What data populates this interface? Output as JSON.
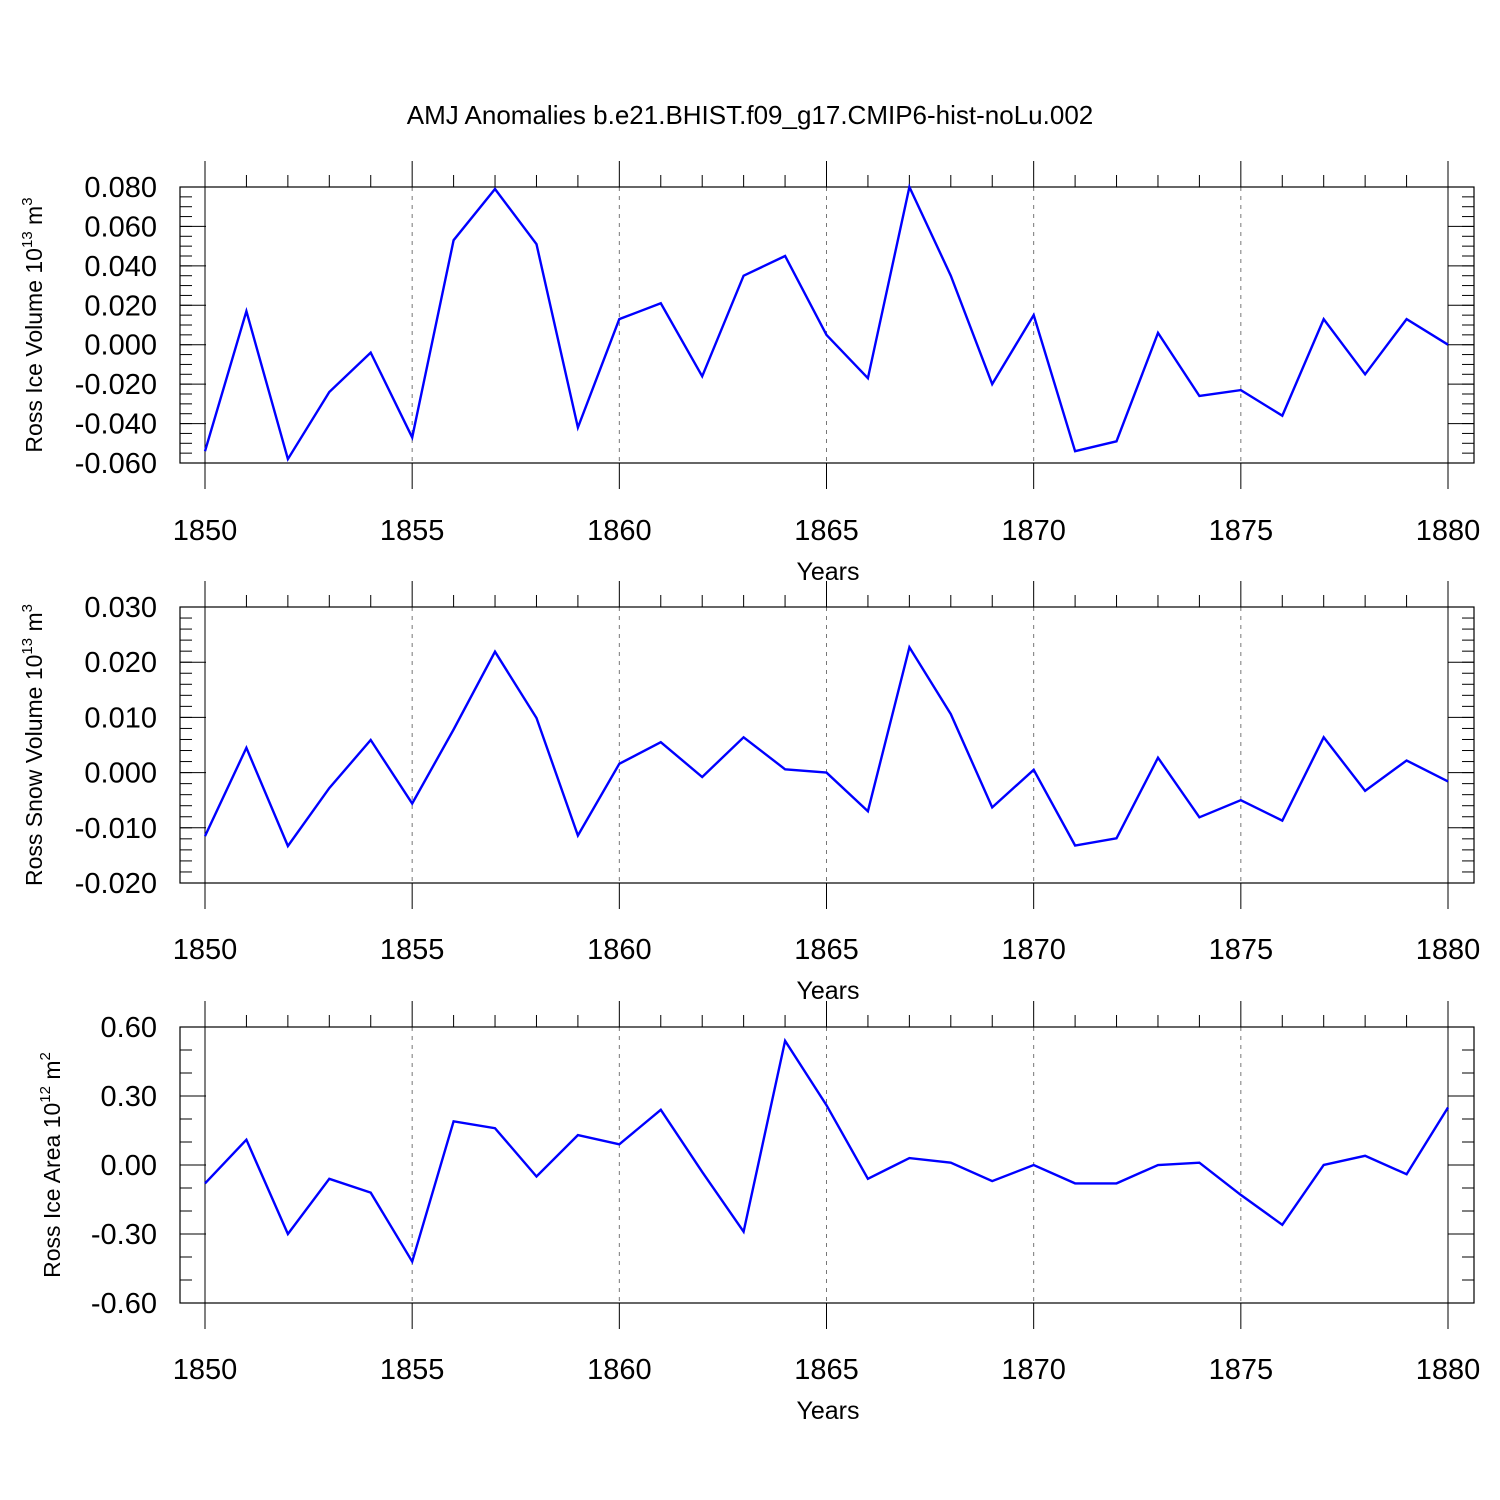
{
  "figure_title": "AMJ Anomalies b.e21.BHIST.f09_g17.CMIP6-hist-noLu.002",
  "colors": {
    "line": "#0000ff",
    "axes": "#000000",
    "grid": "#777777"
  },
  "chart_data": [
    {
      "type": "line",
      "title": "AMJ Anomalies b.e21.BHIST.f09_g17.CMIP6-hist-noLu.002",
      "ylabel": {
        "main": "Ross Ice Volume 10",
        "exp": "13",
        "unit": " m",
        "unit_exp": "3"
      },
      "xlabel": "Years",
      "xlim": [
        1850,
        1880
      ],
      "ylim": [
        -0.06,
        0.08
      ],
      "ytick_values": [
        -0.06,
        -0.04,
        -0.02,
        0.0,
        0.02,
        0.04,
        0.06,
        0.08
      ],
      "ytick_labels": [
        "-0.060",
        "-0.040",
        "-0.020",
        "0.000",
        "0.020",
        "0.040",
        "0.060",
        "0.080"
      ],
      "ytick_minor_step": 0.005,
      "xtick_values": [
        1850,
        1855,
        1860,
        1865,
        1870,
        1875,
        1880
      ],
      "xtick_labels": [
        "1850",
        "1855",
        "1860",
        "1865",
        "1870",
        "1875",
        "1880"
      ],
      "x": [
        1850,
        1851,
        1852,
        1853,
        1854,
        1855,
        1856,
        1857,
        1858,
        1859,
        1860,
        1861,
        1862,
        1863,
        1864,
        1865,
        1866,
        1867,
        1868,
        1869,
        1870,
        1871,
        1872,
        1873,
        1874,
        1875,
        1876,
        1877,
        1878,
        1879,
        1880
      ],
      "values": [
        -0.054,
        0.017,
        -0.058,
        -0.024,
        -0.004,
        -0.047,
        0.053,
        0.079,
        0.051,
        -0.042,
        0.013,
        0.021,
        -0.016,
        0.035,
        0.045,
        0.005,
        -0.017,
        0.08,
        0.035,
        -0.02,
        0.015,
        -0.054,
        -0.049,
        0.006,
        -0.026,
        -0.023,
        -0.036,
        0.013,
        -0.015,
        0.013,
        0.0
      ]
    },
    {
      "type": "line",
      "ylabel": {
        "main": "Ross Snow Volume 10",
        "exp": "13",
        "unit": " m",
        "unit_exp": "3"
      },
      "xlabel": "Years",
      "xlim": [
        1850,
        1880
      ],
      "ylim": [
        -0.02,
        0.03
      ],
      "ytick_values": [
        -0.02,
        -0.01,
        0.0,
        0.01,
        0.02,
        0.03
      ],
      "ytick_labels": [
        "-0.020",
        "-0.010",
        "0.000",
        "0.010",
        "0.020",
        "0.030"
      ],
      "ytick_minor_step": 0.002,
      "xtick_values": [
        1850,
        1855,
        1860,
        1865,
        1870,
        1875,
        1880
      ],
      "xtick_labels": [
        "1850",
        "1855",
        "1860",
        "1865",
        "1870",
        "1875",
        "1880"
      ],
      "x": [
        1850,
        1851,
        1852,
        1853,
        1854,
        1855,
        1856,
        1857,
        1858,
        1859,
        1860,
        1861,
        1862,
        1863,
        1864,
        1865,
        1866,
        1867,
        1868,
        1869,
        1870,
        1871,
        1872,
        1873,
        1874,
        1875,
        1876,
        1877,
        1878,
        1879,
        1880
      ],
      "values": [
        -0.0115,
        0.0045,
        -0.0133,
        -0.0028,
        0.0059,
        -0.0056,
        0.0078,
        0.0219,
        0.0099,
        -0.0114,
        0.0016,
        0.0055,
        -0.0008,
        0.0064,
        0.0006,
        0.0,
        -0.007,
        0.0227,
        0.0106,
        -0.0063,
        0.0005,
        -0.0132,
        -0.0119,
        0.0027,
        -0.0081,
        -0.005,
        -0.0087,
        0.0064,
        -0.0033,
        0.0022,
        -0.0016
      ]
    },
    {
      "type": "line",
      "ylabel": {
        "main": "Ross Ice Area 10",
        "exp": "12",
        "unit": " m",
        "unit_exp": "2"
      },
      "xlabel": "Years",
      "xlim": [
        1850,
        1880
      ],
      "ylim": [
        -0.6,
        0.6
      ],
      "ytick_values": [
        -0.6,
        -0.3,
        0.0,
        0.3,
        0.6
      ],
      "ytick_labels": [
        "-0.60",
        "-0.30",
        "0.00",
        "0.30",
        "0.60"
      ],
      "ytick_minor_step": 0.1,
      "xtick_values": [
        1850,
        1855,
        1860,
        1865,
        1870,
        1875,
        1880
      ],
      "xtick_labels": [
        "1850",
        "1855",
        "1860",
        "1865",
        "1870",
        "1875",
        "1880"
      ],
      "x": [
        1850,
        1851,
        1852,
        1853,
        1854,
        1855,
        1856,
        1857,
        1858,
        1859,
        1860,
        1861,
        1862,
        1863,
        1864,
        1865,
        1866,
        1867,
        1868,
        1869,
        1870,
        1871,
        1872,
        1873,
        1874,
        1875,
        1876,
        1877,
        1878,
        1879,
        1880
      ],
      "values": [
        -0.08,
        0.11,
        -0.3,
        -0.06,
        -0.12,
        -0.42,
        0.19,
        0.16,
        -0.05,
        0.13,
        0.09,
        0.24,
        -0.03,
        -0.29,
        0.54,
        0.26,
        -0.06,
        0.03,
        0.01,
        -0.07,
        0.0,
        -0.08,
        -0.08,
        0.0,
        0.01,
        -0.13,
        -0.26,
        0.0,
        0.04,
        -0.04,
        0.25
      ]
    }
  ]
}
